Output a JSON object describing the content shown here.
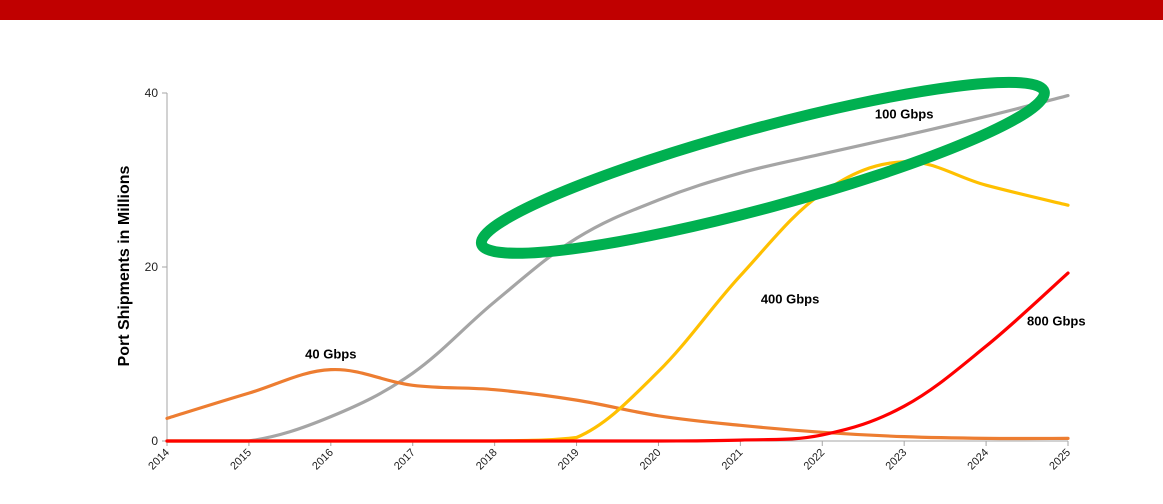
{
  "chart_data": {
    "type": "line",
    "ylabel": "Port Shipments in Millions",
    "xlabel": "",
    "x": [
      "2014",
      "2015",
      "2016",
      "2017",
      "2018",
      "2019",
      "2020",
      "2021",
      "2022",
      "2023",
      "2024",
      "2025"
    ],
    "ylim": [
      0,
      40
    ],
    "yticks": [
      0,
      20,
      40
    ],
    "grid": false,
    "series": [
      {
        "name": "40 Gbps",
        "color": "#ed7d31",
        "values": [
          2.6,
          5.5,
          8.2,
          6.4,
          5.9,
          4.7,
          2.9,
          1.8,
          1.0,
          0.5,
          0.3,
          0.3
        ]
      },
      {
        "name": "100 Gbps",
        "color": "#a5a5a5",
        "values": [
          0.0,
          0.0,
          2.8,
          7.8,
          16.0,
          23.3,
          27.7,
          30.8,
          33.0,
          35.1,
          37.3,
          39.7
        ]
      },
      {
        "name": "400 Gbps",
        "color": "#ffc000",
        "values": [
          0.0,
          0.0,
          0.0,
          0.0,
          0.0,
          0.4,
          8.0,
          19.0,
          28.5,
          32.1,
          29.4,
          27.1
        ]
      },
      {
        "name": "800 Gbps",
        "color": "#ff0000",
        "values": [
          0.0,
          0.0,
          0.0,
          0.0,
          0.0,
          0.0,
          0.0,
          0.1,
          0.7,
          4.0,
          10.9,
          19.3
        ]
      }
    ],
    "annotations": [
      {
        "type": "ellipse",
        "color": "#00b050",
        "highlights": "100 Gbps",
        "x_range": [
          "2018",
          "2025"
        ]
      }
    ]
  },
  "colors": {
    "top_bar": "#c00000",
    "axis": "#a6a6a6",
    "highlight": "#00b050"
  }
}
